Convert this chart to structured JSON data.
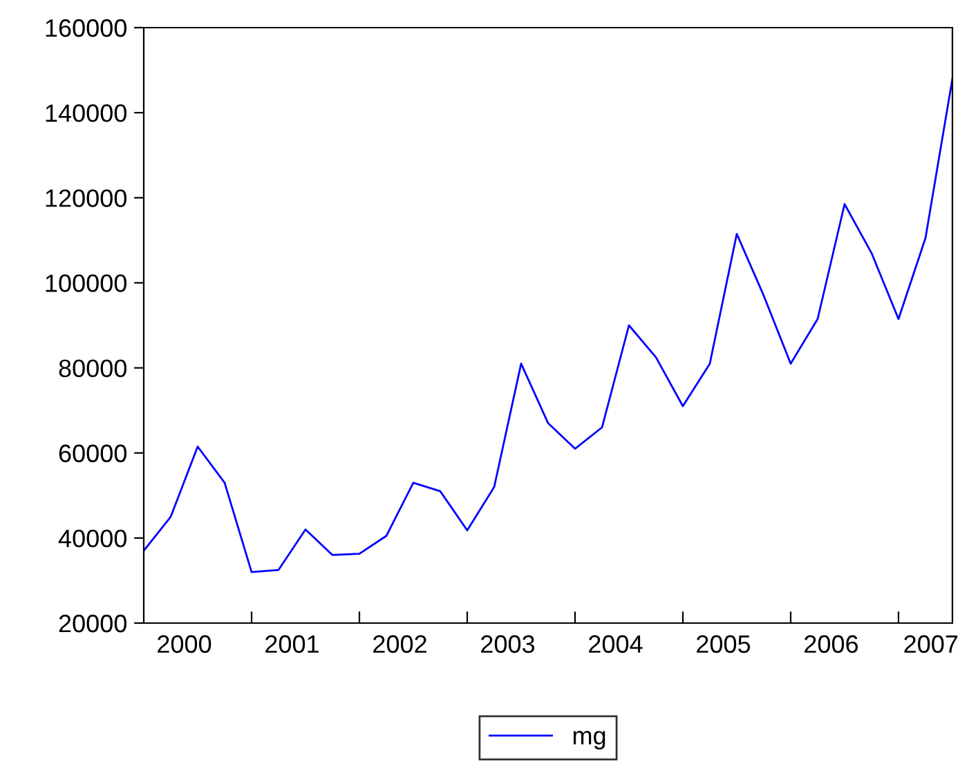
{
  "chart_data": {
    "type": "line",
    "x": [
      2000.0,
      2000.25,
      2000.5,
      2000.75,
      2001.0,
      2001.25,
      2001.5,
      2001.75,
      2002.0,
      2002.25,
      2002.5,
      2002.75,
      2003.0,
      2003.25,
      2003.5,
      2003.75,
      2004.0,
      2004.25,
      2004.5,
      2004.75,
      2005.0,
      2005.25,
      2005.5,
      2005.75,
      2006.0,
      2006.25,
      2006.5,
      2006.75,
      2007.0,
      2007.25,
      2007.5
    ],
    "series": [
      {
        "name": "mg",
        "color": "#0000ff",
        "values": [
          37000,
          45000,
          61500,
          53000,
          32000,
          32500,
          42000,
          36000,
          36300,
          40500,
          53000,
          51000,
          41800,
          52000,
          81000,
          67000,
          61000,
          66000,
          90000,
          82500,
          71000,
          81000,
          111500,
          97000,
          81000,
          91500,
          118500,
          107000,
          91500,
          110500,
          148000
        ]
      }
    ],
    "xlim": [
      2000.0,
      2007.5
    ],
    "xticks": [
      {
        "value": 2000.375,
        "label": "2000"
      },
      {
        "value": 2001,
        "label": null
      },
      {
        "value": 2001.375,
        "label": "2001"
      },
      {
        "value": 2002,
        "label": null
      },
      {
        "value": 2002.375,
        "label": "2002"
      },
      {
        "value": 2003,
        "label": null
      },
      {
        "value": 2003.375,
        "label": "2003"
      },
      {
        "value": 2004,
        "label": null
      },
      {
        "value": 2004.375,
        "label": "2004"
      },
      {
        "value": 2005,
        "label": null
      },
      {
        "value": 2005.375,
        "label": "2005"
      },
      {
        "value": 2006,
        "label": null
      },
      {
        "value": 2006.375,
        "label": "2006"
      },
      {
        "value": 2007,
        "label": null
      },
      {
        "value": 2007.3,
        "label": "2007"
      }
    ],
    "ylim": [
      20000,
      160000
    ],
    "yticks": [
      20000,
      40000,
      60000,
      80000,
      100000,
      120000,
      140000,
      160000
    ],
    "grid": false,
    "legend": "bottom",
    "line_style": "solid",
    "marker": "none"
  }
}
